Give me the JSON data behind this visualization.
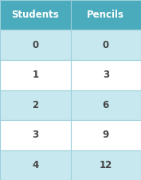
{
  "headers": [
    "Students",
    "Pencils"
  ],
  "rows": [
    [
      "0",
      "0"
    ],
    [
      "1",
      "3"
    ],
    [
      "2",
      "6"
    ],
    [
      "3",
      "9"
    ],
    [
      "4",
      "12"
    ]
  ],
  "header_bg": "#4AABBC",
  "row_bg_even": "#C8E8F0",
  "row_bg_odd": "#FFFFFF",
  "header_text_color": "#FFFFFF",
  "row_text_color": "#444444",
  "border_color": "#9DCFDA",
  "outer_border_color": "#9DCFDA",
  "header_fontsize": 8.5,
  "row_fontsize": 8.5,
  "fig_bg": "#FFFFFF",
  "fig_width": 1.77,
  "fig_height": 2.25,
  "dpi": 100
}
